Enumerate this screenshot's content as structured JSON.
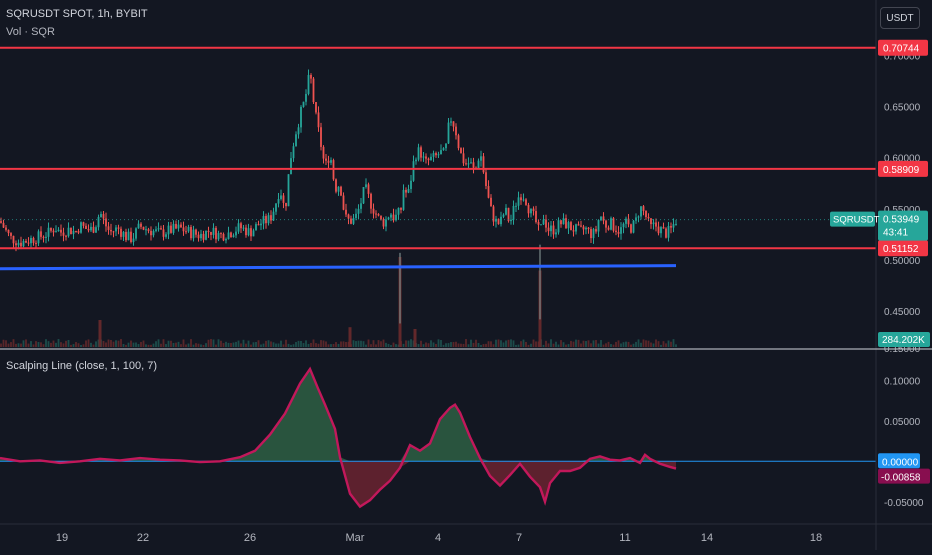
{
  "header": {
    "symbol_line": "SQRUSDT SPOT, 1h, BYBIT",
    "volume_line": "Vol · SQR",
    "currency_button": "USDT"
  },
  "indicator": {
    "title": "Scalping Line (close, 1, 100, 7)"
  },
  "colors": {
    "background": "#131722",
    "up": "#26a69a",
    "down": "#ef5350",
    "level_line": "#f23645",
    "blue_line": "#2962ff",
    "osc_line": "#c2185b",
    "osc_pos_fill": "#2e5f43",
    "osc_neg_fill": "#6b2330",
    "zero_line": "#2196f3"
  },
  "chart_data": [
    {
      "type": "candlestick",
      "title": "SQRUSDT SPOT, 1h, BYBIT",
      "y_ticks": [
        "0.65000",
        "0.60000",
        "0.55000",
        "0.45000"
      ],
      "x_ticks": [
        "19",
        "22",
        "26",
        "Mar",
        "4",
        "7",
        "11",
        "14",
        "18"
      ],
      "ylim": [
        0.415,
        0.715
      ],
      "horizontal_levels": [
        {
          "label": "0.70744",
          "value": 0.70744
        },
        {
          "label": "0.58909",
          "value": 0.58909
        },
        {
          "label": "0.51152",
          "value": 0.51152
        }
      ],
      "trend_line": {
        "from": 0.4915,
        "to": 0.4945
      },
      "last_price": {
        "symbol": "SQRUSDT",
        "value": "0.53949",
        "countdown": "43:41"
      },
      "volume_label": "284.202K",
      "price_path_x": [
        0,
        10,
        20,
        30,
        40,
        50,
        55,
        60,
        66,
        70,
        75,
        80,
        85,
        90,
        95,
        100,
        105,
        110,
        118,
        126,
        132,
        140,
        150,
        160,
        170,
        180,
        190,
        200,
        210,
        220,
        230,
        240,
        250,
        260,
        270,
        275,
        280,
        285,
        290,
        295,
        300,
        305,
        310,
        315,
        320,
        325,
        330,
        335,
        340,
        345,
        350,
        355,
        360,
        365,
        370,
        375,
        380,
        385,
        390,
        395,
        398,
        400,
        403,
        408,
        415,
        420,
        425,
        430,
        435,
        440,
        445,
        450,
        455,
        460,
        465,
        470,
        475,
        480,
        485,
        490,
        495,
        500,
        505,
        510,
        515,
        520,
        525,
        530,
        535,
        538,
        540,
        543,
        548,
        555,
        560,
        565,
        570,
        575,
        580,
        585,
        590,
        595,
        600,
        605,
        610,
        615,
        620,
        625,
        630,
        635,
        640,
        645,
        650,
        655,
        660,
        665,
        670,
        676
      ],
      "price_path_y": [
        0.538,
        0.522,
        0.517,
        0.52,
        0.523,
        0.527,
        0.532,
        0.527,
        0.529,
        0.53,
        0.527,
        0.534,
        0.531,
        0.529,
        0.533,
        0.547,
        0.535,
        0.527,
        0.531,
        0.523,
        0.521,
        0.533,
        0.529,
        0.526,
        0.529,
        0.531,
        0.527,
        0.524,
        0.529,
        0.524,
        0.527,
        0.532,
        0.527,
        0.536,
        0.54,
        0.553,
        0.571,
        0.547,
        0.597,
        0.622,
        0.641,
        0.657,
        0.683,
        0.644,
        0.618,
        0.59,
        0.605,
        0.57,
        0.575,
        0.541,
        0.538,
        0.54,
        0.553,
        0.571,
        0.557,
        0.547,
        0.538,
        0.537,
        0.547,
        0.54,
        0.547,
        0.54,
        0.57,
        0.563,
        0.603,
        0.607,
        0.594,
        0.598,
        0.6,
        0.605,
        0.603,
        0.64,
        0.63,
        0.605,
        0.594,
        0.595,
        0.585,
        0.607,
        0.578,
        0.551,
        0.538,
        0.535,
        0.549,
        0.536,
        0.554,
        0.565,
        0.562,
        0.547,
        0.54,
        0.53,
        0.524,
        0.544,
        0.53,
        0.53,
        0.536,
        0.536,
        0.532,
        0.53,
        0.527,
        0.531,
        0.526,
        0.525,
        0.545,
        0.534,
        0.536,
        0.532,
        0.528,
        0.536,
        0.531,
        0.535,
        0.552,
        0.545,
        0.531,
        0.534,
        0.53,
        0.526,
        0.528,
        0.539
      ],
      "volume_spikes": [
        {
          "x": 400,
          "value": 1.0
        },
        {
          "x": 540,
          "value": 0.85
        },
        {
          "x": 415,
          "value": 0.2
        },
        {
          "x": 350,
          "value": 0.22
        },
        {
          "x": 100,
          "value": 0.3
        }
      ]
    },
    {
      "type": "area",
      "title": "Scalping Line (close, 1, 100, 7)",
      "y_ticks": [
        "0.10000",
        "0.05000",
        "-0.05000"
      ],
      "ylim": [
        -0.075,
        0.135
      ],
      "zero_label": "0.00000",
      "last_value_label": "-0.00858",
      "x": [
        0,
        20,
        40,
        60,
        80,
        100,
        120,
        140,
        160,
        180,
        200,
        220,
        240,
        255,
        270,
        285,
        300,
        310,
        318,
        325,
        335,
        340,
        350,
        360,
        370,
        380,
        390,
        400,
        410,
        420,
        430,
        440,
        450,
        455,
        460,
        470,
        480,
        490,
        500,
        510,
        520,
        530,
        540,
        545,
        550,
        560,
        570,
        580,
        590,
        600,
        610,
        620,
        630,
        640,
        645,
        650,
        660,
        670,
        676
      ],
      "values": [
        0.004,
        0.0,
        0.001,
        -0.002,
        0.0,
        0.003,
        0.001,
        0.004,
        0.002,
        0.001,
        -0.001,
        0.0,
        0.005,
        0.013,
        0.033,
        0.059,
        0.096,
        0.114,
        0.09,
        0.07,
        0.04,
        0.005,
        -0.04,
        -0.056,
        -0.048,
        -0.035,
        -0.024,
        -0.008,
        0.02,
        0.013,
        0.022,
        0.052,
        0.066,
        0.07,
        0.06,
        0.03,
        0.004,
        -0.018,
        -0.03,
        -0.017,
        -0.003,
        -0.019,
        -0.032,
        -0.05,
        -0.027,
        -0.012,
        -0.012,
        -0.008,
        0.003,
        0.006,
        0.002,
        0.001,
        0.004,
        -0.002,
        0.008,
        0.003,
        -0.003,
        -0.007,
        -0.009
      ]
    }
  ]
}
